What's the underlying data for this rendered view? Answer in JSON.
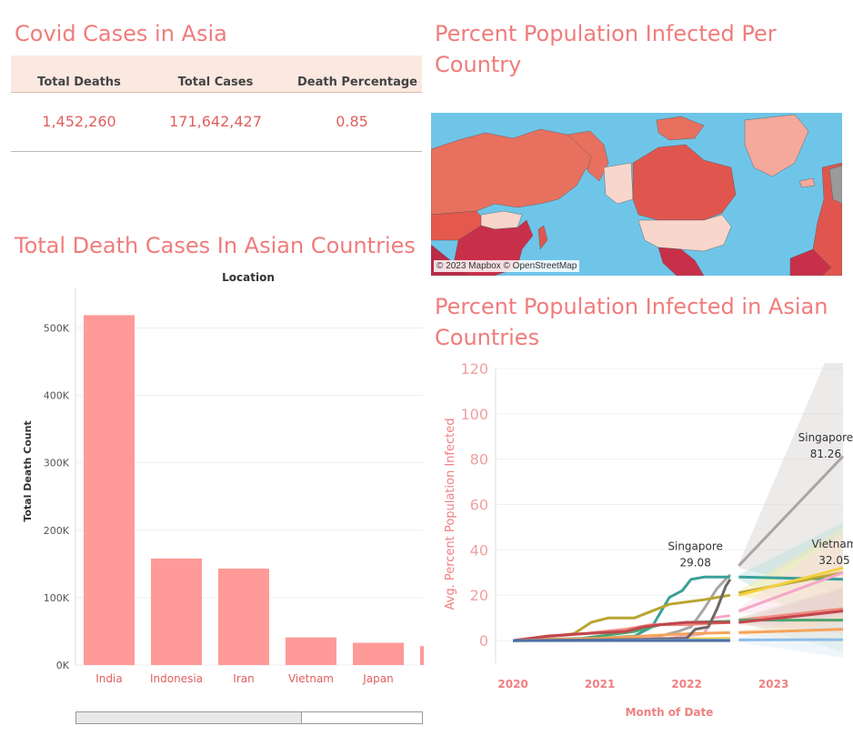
{
  "kpi": {
    "title": "Covid Cases in Asia",
    "headers": [
      "Total Deaths",
      "Total Cases",
      "Death Percentage"
    ],
    "values": [
      "1,452,260",
      "171,642,427",
      "0.85"
    ]
  },
  "map": {
    "title": "Percent Population Infected Per Country",
    "attribution": "© 2023 Mapbox © OpenStreetMap",
    "colors": {
      "ocean": "#6fc5e8",
      "low": "#f9d6cb",
      "mid": "#f0836b",
      "high": "#e0564e",
      "veryhigh": "#c8304a",
      "ice": "#f4a99b"
    }
  },
  "chart_data": [
    {
      "type": "bar",
      "title": "Total Death Cases In Asian Countries",
      "header": "Location",
      "ylabel": "Total Death Count",
      "categories": [
        "India",
        "Indonesia",
        "Iran",
        "Vietnam",
        "Japan"
      ],
      "values": [
        519000,
        158000,
        143000,
        41000,
        33000
      ],
      "ylim": [
        0,
        560000
      ],
      "yticks": [
        0,
        100000,
        200000,
        300000,
        400000,
        500000
      ],
      "ytick_labels": [
        "0K",
        "100K",
        "200K",
        "300K",
        "400K",
        "500K"
      ],
      "bar_color": "#fe9a98",
      "grid": true
    },
    {
      "type": "line",
      "title": "Percent Population Infected in Asian Countries",
      "xlabel": "Month of Date",
      "ylabel": "Avg. Percent Population Infected",
      "xticks": [
        2020,
        2021,
        2022,
        2023
      ],
      "yticks": [
        0,
        20,
        40,
        60,
        80,
        100,
        120
      ],
      "ylim": [
        -10,
        120
      ],
      "xlim": [
        2019.8,
        2023.8
      ],
      "annotations": [
        {
          "name": "Singapore",
          "value": "29.08"
        },
        {
          "name": "Singapore",
          "value": "81.26"
        },
        {
          "name": "Vietnam",
          "value": "32.05"
        }
      ],
      "series": [
        {
          "color": "#a9a5a5",
          "points": [
            [
              2020.0,
              0
            ],
            [
              2021.0,
              0.3
            ],
            [
              2021.6,
              1
            ],
            [
              2021.9,
              4
            ],
            [
              2022.05,
              6
            ],
            [
              2022.2,
              14
            ],
            [
              2022.35,
              23
            ],
            [
              2022.5,
              29.08
            ]
          ],
          "forecast": [
            [
              2022.6,
              33
            ],
            [
              2023.8,
              81.26
            ]
          ],
          "band_color": "#d8d0d0"
        },
        {
          "color": "#3aa09a",
          "points": [
            [
              2020.0,
              0
            ],
            [
              2021.0,
              1
            ],
            [
              2021.4,
              2
            ],
            [
              2021.6,
              6
            ],
            [
              2021.8,
              19
            ],
            [
              2021.95,
              22
            ],
            [
              2022.05,
              27
            ],
            [
              2022.2,
              28
            ],
            [
              2022.5,
              28
            ]
          ],
          "forecast": [
            [
              2022.6,
              28
            ],
            [
              2023.8,
              27
            ]
          ],
          "band_color": "#b8e0dc"
        },
        {
          "color": "#b8a630",
          "points": [
            [
              2020.0,
              0
            ],
            [
              2020.7,
              3
            ],
            [
              2020.9,
              8
            ],
            [
              2021.1,
              10
            ],
            [
              2021.4,
              10
            ],
            [
              2021.6,
              13
            ],
            [
              2021.8,
              16
            ],
            [
              2022.0,
              17
            ],
            [
              2022.2,
              18
            ],
            [
              2022.5,
              20
            ]
          ],
          "forecast": [
            [
              2022.6,
              21
            ],
            [
              2023.8,
              30
            ]
          ],
          "band_color": "#f2eab0"
        },
        {
          "color": "#f4d03f",
          "points": [
            [
              2020.0,
              0
            ],
            [
              2021.5,
              0.5
            ],
            [
              2022.5,
              1
            ]
          ],
          "forecast": [
            [
              2022.6,
              20
            ],
            [
              2023.8,
              32.05
            ]
          ],
          "band_color": "#fbf1c0"
        },
        {
          "color": "#f4a8c8",
          "points": [
            [
              2020.0,
              0
            ],
            [
              2021.8,
              1
            ],
            [
              2022.2,
              3
            ],
            [
              2022.3,
              10
            ],
            [
              2022.5,
              11
            ]
          ],
          "forecast": [
            [
              2022.6,
              13
            ],
            [
              2023.8,
              30
            ]
          ],
          "band_color": "#fbdbe8"
        },
        {
          "color": "#f08a80",
          "points": [
            [
              2020.0,
              0
            ],
            [
              2020.5,
              2
            ],
            [
              2020.8,
              3
            ],
            [
              2021.3,
              5
            ],
            [
              2021.6,
              7
            ],
            [
              2022.0,
              7
            ],
            [
              2022.5,
              8
            ]
          ],
          "forecast": [
            [
              2022.6,
              9
            ],
            [
              2023.8,
              14
            ]
          ],
          "band_color": "#fbd2cc"
        },
        {
          "color": "#4fa36f",
          "points": [
            [
              2020.0,
              0
            ],
            [
              2020.8,
              1
            ],
            [
              2021.4,
              4
            ],
            [
              2021.7,
              7
            ],
            [
              2022.0,
              8
            ],
            [
              2022.5,
              8.5
            ]
          ],
          "forecast": [
            [
              2022.6,
              9
            ],
            [
              2023.8,
              9
            ]
          ],
          "band_color": "#cfe8d6"
        },
        {
          "color": "#c2454d",
          "points": [
            [
              2020.0,
              0
            ],
            [
              2020.4,
              2
            ],
            [
              2020.8,
              3
            ],
            [
              2021.3,
              4
            ],
            [
              2021.5,
              6
            ],
            [
              2021.7,
              7
            ],
            [
              2022.0,
              8
            ],
            [
              2022.5,
              8
            ]
          ],
          "forecast": [
            [
              2022.6,
              8
            ],
            [
              2023.8,
              13
            ]
          ],
          "band_color": "#f2c8c9"
        },
        {
          "color": "#f5a45a",
          "points": [
            [
              2020.0,
              0
            ],
            [
              2021.0,
              1
            ],
            [
              2021.5,
              2
            ],
            [
              2022.0,
              3
            ],
            [
              2022.5,
              3.5
            ]
          ],
          "forecast": [
            [
              2022.6,
              3.5
            ],
            [
              2023.8,
              5
            ]
          ],
          "band_color": "#fde3c6"
        },
        {
          "color": "#6f6666",
          "points": [
            [
              2020.0,
              0
            ],
            [
              2021.5,
              0.5
            ],
            [
              2022.0,
              1
            ],
            [
              2022.1,
              5
            ],
            [
              2022.25,
              6
            ],
            [
              2022.35,
              14
            ],
            [
              2022.45,
              24
            ],
            [
              2022.5,
              27
            ]
          ],
          "forecast": [],
          "band_color": ""
        },
        {
          "color": "#8dbde6",
          "points": [
            [
              2020.0,
              0
            ],
            [
              2022.5,
              0.2
            ]
          ],
          "forecast": [
            [
              2022.6,
              0.3
            ],
            [
              2023.8,
              0.4
            ]
          ],
          "band_color": "#dbeaf6"
        },
        {
          "color": "#4e6fa3",
          "points": [
            [
              2020.0,
              0
            ],
            [
              2022.5,
              0
            ]
          ],
          "forecast": [],
          "band_color": ""
        }
      ]
    }
  ]
}
